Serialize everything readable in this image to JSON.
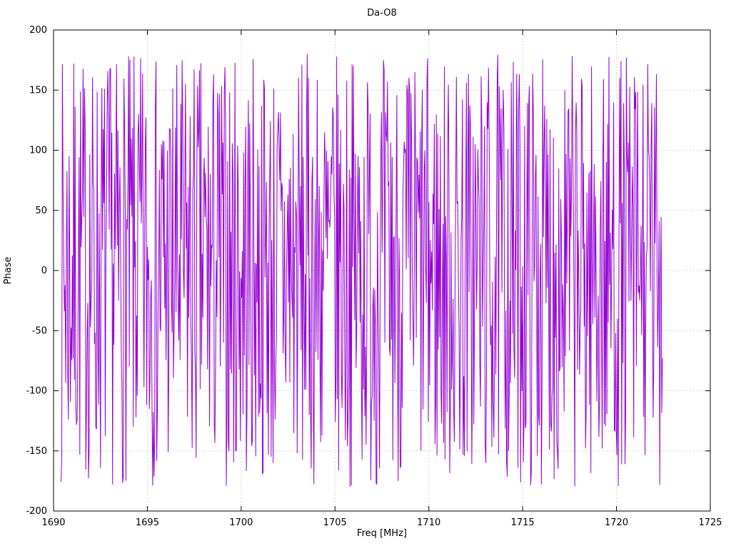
{
  "chart": {
    "title": "Da-O8",
    "xlabel": "Freq [MHz]",
    "ylabel": "Phase",
    "xlim": [
      1690,
      1725
    ],
    "ylim": [
      -200,
      200
    ],
    "x_ticks": [
      1690,
      1695,
      1700,
      1705,
      1710,
      1715,
      1720,
      1725
    ],
    "y_ticks": [
      -200,
      -150,
      -100,
      -50,
      0,
      50,
      100,
      150,
      200
    ],
    "grid": true,
    "legend": "none",
    "colors": {
      "line": "#9400d3",
      "grid": "#b8b8b8",
      "border": "#000000",
      "background": "#ffffff"
    },
    "chart_data": {
      "type": "line",
      "title": "Da-O8",
      "xlabel": "Freq [MHz]",
      "ylabel": "Phase",
      "xlim": [
        1690,
        1725
      ],
      "ylim": [
        -200,
        200
      ],
      "series": [
        {
          "name": "phase",
          "description": "densely wrapped phase noise, uniformly distributed between -180 and 180 degrees",
          "x_start": 1690.4,
          "x_end": 1722.45,
          "n_points": 900,
          "y_min": -180,
          "y_max": 180,
          "seed": 7
        }
      ]
    }
  }
}
